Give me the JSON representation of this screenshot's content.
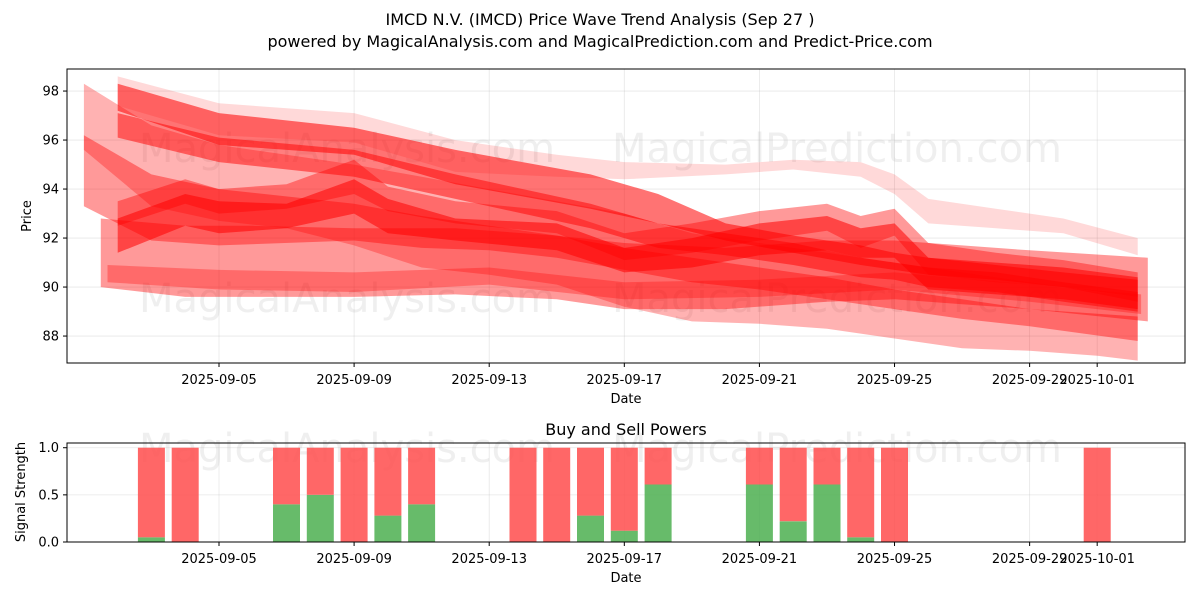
{
  "figure": {
    "title_line1": "IMCD N.V. (IMCD) Price Wave Trend Analysis (Sep 27 )",
    "title_line2": "powered by MagicalAnalysis.com and MagicalPrediction.com and Predict-Price.com",
    "watermarks": [
      "MagicalAnalysis.com",
      "MagicalPrediction.com"
    ]
  },
  "chart_data": [
    {
      "type": "area",
      "title": "",
      "xlabel": "Date",
      "ylabel": "Price",
      "xlim": [
        -1.5,
        31.6
      ],
      "ylim": [
        86.9,
        98.9
      ],
      "x_ticks": [
        {
          "pos": 3,
          "label": "2025-09-05"
        },
        {
          "pos": 7,
          "label": "2025-09-09"
        },
        {
          "pos": 11,
          "label": "2025-09-13"
        },
        {
          "pos": 15,
          "label": "2025-09-17"
        },
        {
          "pos": 19,
          "label": "2025-09-21"
        },
        {
          "pos": 23,
          "label": "2025-09-25"
        },
        {
          "pos": 27,
          "label": "2025-09-29"
        },
        {
          "pos": 29,
          "label": "2025-10-01"
        }
      ],
      "y_ticks": [
        88,
        90,
        92,
        94,
        96,
        98
      ],
      "grid": true,
      "color": "#ff0000",
      "bands": [
        {
          "name": "band-1",
          "x": [
            0,
            3,
            7,
            10,
            14,
            16,
            18,
            20,
            22,
            23,
            24,
            26,
            28,
            30.2
          ],
          "lo": [
            97.2,
            95.8,
            95.4,
            94.2,
            93.2,
            92.6,
            91.9,
            91.4,
            90.9,
            90.7,
            90.5,
            90.3,
            90,
            89.6
          ],
          "hi": [
            98.3,
            97.1,
            96.5,
            95.6,
            94.6,
            93.8,
            92.6,
            92.1,
            91.7,
            91.4,
            91.2,
            91,
            90.8,
            90.4
          ],
          "opacity": 0.55
        },
        {
          "name": "band-2",
          "x": [
            0,
            2,
            3,
            5,
            7,
            8,
            10,
            13,
            15,
            17,
            19,
            21,
            22,
            23,
            24,
            26,
            28,
            30.2
          ],
          "lo": [
            91.4,
            92.5,
            92.2,
            92.4,
            93,
            92.2,
            91.9,
            91.5,
            90.6,
            90.8,
            91.3,
            91.5,
            91.2,
            91.2,
            89.9,
            89.7,
            89.5,
            89.1
          ],
          "hi": [
            92.8,
            93.8,
            93.5,
            93.4,
            94.4,
            93.6,
            92.8,
            92.6,
            91.6,
            92,
            92.6,
            92.9,
            92.4,
            92.6,
            91.2,
            90.9,
            90.6,
            90.3
          ],
          "opacity": 0.55
        },
        {
          "name": "band-3",
          "x": [
            -1,
            1,
            3,
            7,
            9,
            11,
            13,
            15,
            17,
            19,
            21,
            23,
            25,
            27,
            30.2
          ],
          "lo": [
            93.3,
            91.9,
            91.7,
            91.9,
            91.6,
            91.5,
            91.2,
            90.7,
            90.2,
            89.9,
            89.5,
            89.1,
            88.7,
            88.4,
            87.8
          ],
          "hi": [
            96.2,
            94.6,
            94,
            93.4,
            92.9,
            92.5,
            92.1,
            91.6,
            91.2,
            90.8,
            90.4,
            89.9,
            89.5,
            89.1,
            88.8
          ],
          "opacity": 0.4
        },
        {
          "name": "band-4",
          "x": [
            -1,
            1,
            3,
            5,
            7,
            9,
            11,
            13,
            15,
            17,
            19,
            21,
            23,
            25,
            27,
            29,
            30.2
          ],
          "lo": [
            95.6,
            93.3,
            92.7,
            92.4,
            91.7,
            90.8,
            90.5,
            90.1,
            89.2,
            88.6,
            88.5,
            88.3,
            87.9,
            87.5,
            87.4,
            87.2,
            87
          ],
          "hi": [
            98.3,
            96.6,
            95.8,
            95.4,
            95,
            94.5,
            94,
            93.5,
            93,
            92.2,
            91.8,
            91.4,
            91,
            90.6,
            90.2,
            89.8,
            89.6
          ],
          "opacity": 0.3
        },
        {
          "name": "band-5",
          "x": [
            -0.5,
            2,
            4,
            7,
            10,
            13,
            15,
            18,
            21,
            23,
            25,
            27,
            30.5
          ],
          "lo": [
            90,
            89.6,
            89.6,
            89.6,
            89.7,
            89.5,
            89.1,
            89.1,
            89.4,
            89.5,
            89.3,
            89.1,
            88.6
          ],
          "hi": [
            92.8,
            92.5,
            92.5,
            92.4,
            92.4,
            92.1,
            91.8,
            91.6,
            91.9,
            91.9,
            91.7,
            91.5,
            91.2
          ],
          "opacity": 0.4
        },
        {
          "name": "band-6",
          "x": [
            0,
            3,
            7,
            10,
            13,
            15,
            18,
            20,
            22,
            23,
            24,
            26,
            28,
            30.2
          ],
          "lo": [
            97.4,
            96.2,
            95.9,
            94.7,
            94.5,
            94.4,
            94.6,
            94.8,
            94.5,
            93.8,
            92.6,
            92.4,
            92.2,
            91.3
          ],
          "hi": [
            98.6,
            97.5,
            97.1,
            96,
            95.4,
            95.1,
            95,
            95.2,
            95.1,
            94.6,
            93.6,
            93.2,
            92.8,
            92
          ],
          "opacity": 0.15
        },
        {
          "name": "band-7",
          "x": [
            0,
            2,
            3,
            5,
            7,
            8,
            10,
            13,
            15,
            17,
            19,
            21,
            22,
            23,
            24,
            26,
            28,
            30.2
          ],
          "lo": [
            92.5,
            93.4,
            93,
            93.2,
            93.8,
            93.1,
            92.6,
            92.2,
            91.1,
            91.4,
            91.9,
            92.3,
            91.6,
            92.1,
            90.5,
            90.2,
            90,
            89.4
          ],
          "hi": [
            93.5,
            94.4,
            94,
            94.2,
            95.2,
            94.1,
            93.5,
            93.1,
            92.2,
            92.6,
            93.1,
            93.4,
            92.9,
            93.2,
            91.8,
            91.4,
            91.1,
            90.6
          ],
          "opacity": 0.4
        },
        {
          "name": "band-8",
          "x": [
            0,
            3,
            7,
            10,
            14,
            16,
            18,
            20,
            22,
            23,
            24,
            26,
            28,
            30.2
          ],
          "lo": [
            96.1,
            95.1,
            94.5,
            93.6,
            92.4,
            91.6,
            91.3,
            90.9,
            90.4,
            90.3,
            90,
            89.8,
            89.4,
            89
          ],
          "hi": [
            97.1,
            96.1,
            95.6,
            94.6,
            93.4,
            92.6,
            92.2,
            91.8,
            91.2,
            91,
            90.8,
            90.6,
            90.2,
            89.8
          ],
          "opacity": 0.5
        },
        {
          "name": "band-9",
          "x": [
            -0.3,
            3,
            7,
            11,
            15,
            19,
            23,
            27,
            30.3
          ],
          "lo": [
            90.2,
            89.9,
            89.8,
            90.1,
            89.5,
            89.6,
            89.9,
            89.4,
            88.9
          ],
          "hi": [
            90.9,
            90.7,
            90.6,
            90.8,
            90.2,
            90.3,
            90.6,
            90.1,
            89.7
          ],
          "opacity": 0.3
        }
      ]
    },
    {
      "type": "bar",
      "title": "Buy and Sell Powers",
      "xlabel": "Date",
      "ylabel": "Signal Strength",
      "xlim": [
        -1.5,
        31.6
      ],
      "ylim": [
        0,
        1.05
      ],
      "y_ticks": [
        0.0,
        0.5,
        1.0
      ],
      "y_tick_labels": [
        "0.0",
        "0.5",
        "1.0"
      ],
      "x_ticks": [
        {
          "pos": 3,
          "label": "2025-09-05"
        },
        {
          "pos": 7,
          "label": "2025-09-09"
        },
        {
          "pos": 11,
          "label": "2025-09-13"
        },
        {
          "pos": 15,
          "label": "2025-09-17"
        },
        {
          "pos": 19,
          "label": "2025-09-21"
        },
        {
          "pos": 23,
          "label": "2025-09-25"
        },
        {
          "pos": 27,
          "label": "2025-09-29"
        },
        {
          "pos": 29,
          "label": "2025-10-01"
        }
      ],
      "grid": true,
      "colors": {
        "buy": "#4caf50",
        "sell": "#ff4c4c"
      },
      "series": [
        {
          "name": "Buy",
          "x": [
            1,
            2,
            5,
            6,
            7,
            8,
            9,
            12,
            13,
            14,
            15,
            16,
            19,
            20,
            21,
            22,
            23,
            29
          ],
          "values": [
            0.05,
            0.0,
            0.4,
            0.5,
            0.0,
            0.28,
            0.4,
            0.0,
            0.0,
            0.28,
            0.12,
            0.61,
            0.61,
            0.22,
            0.61,
            0.05,
            0.0,
            0.0
          ]
        },
        {
          "name": "Sell",
          "x": [
            1,
            2,
            5,
            6,
            7,
            8,
            9,
            12,
            13,
            14,
            15,
            16,
            19,
            20,
            21,
            22,
            23,
            29
          ],
          "values": [
            0.95,
            1.0,
            0.6,
            0.5,
            1.0,
            0.72,
            0.6,
            1.0,
            1.0,
            0.72,
            0.88,
            0.39,
            0.39,
            0.78,
            0.39,
            0.95,
            1.0,
            1.0
          ]
        }
      ]
    }
  ]
}
